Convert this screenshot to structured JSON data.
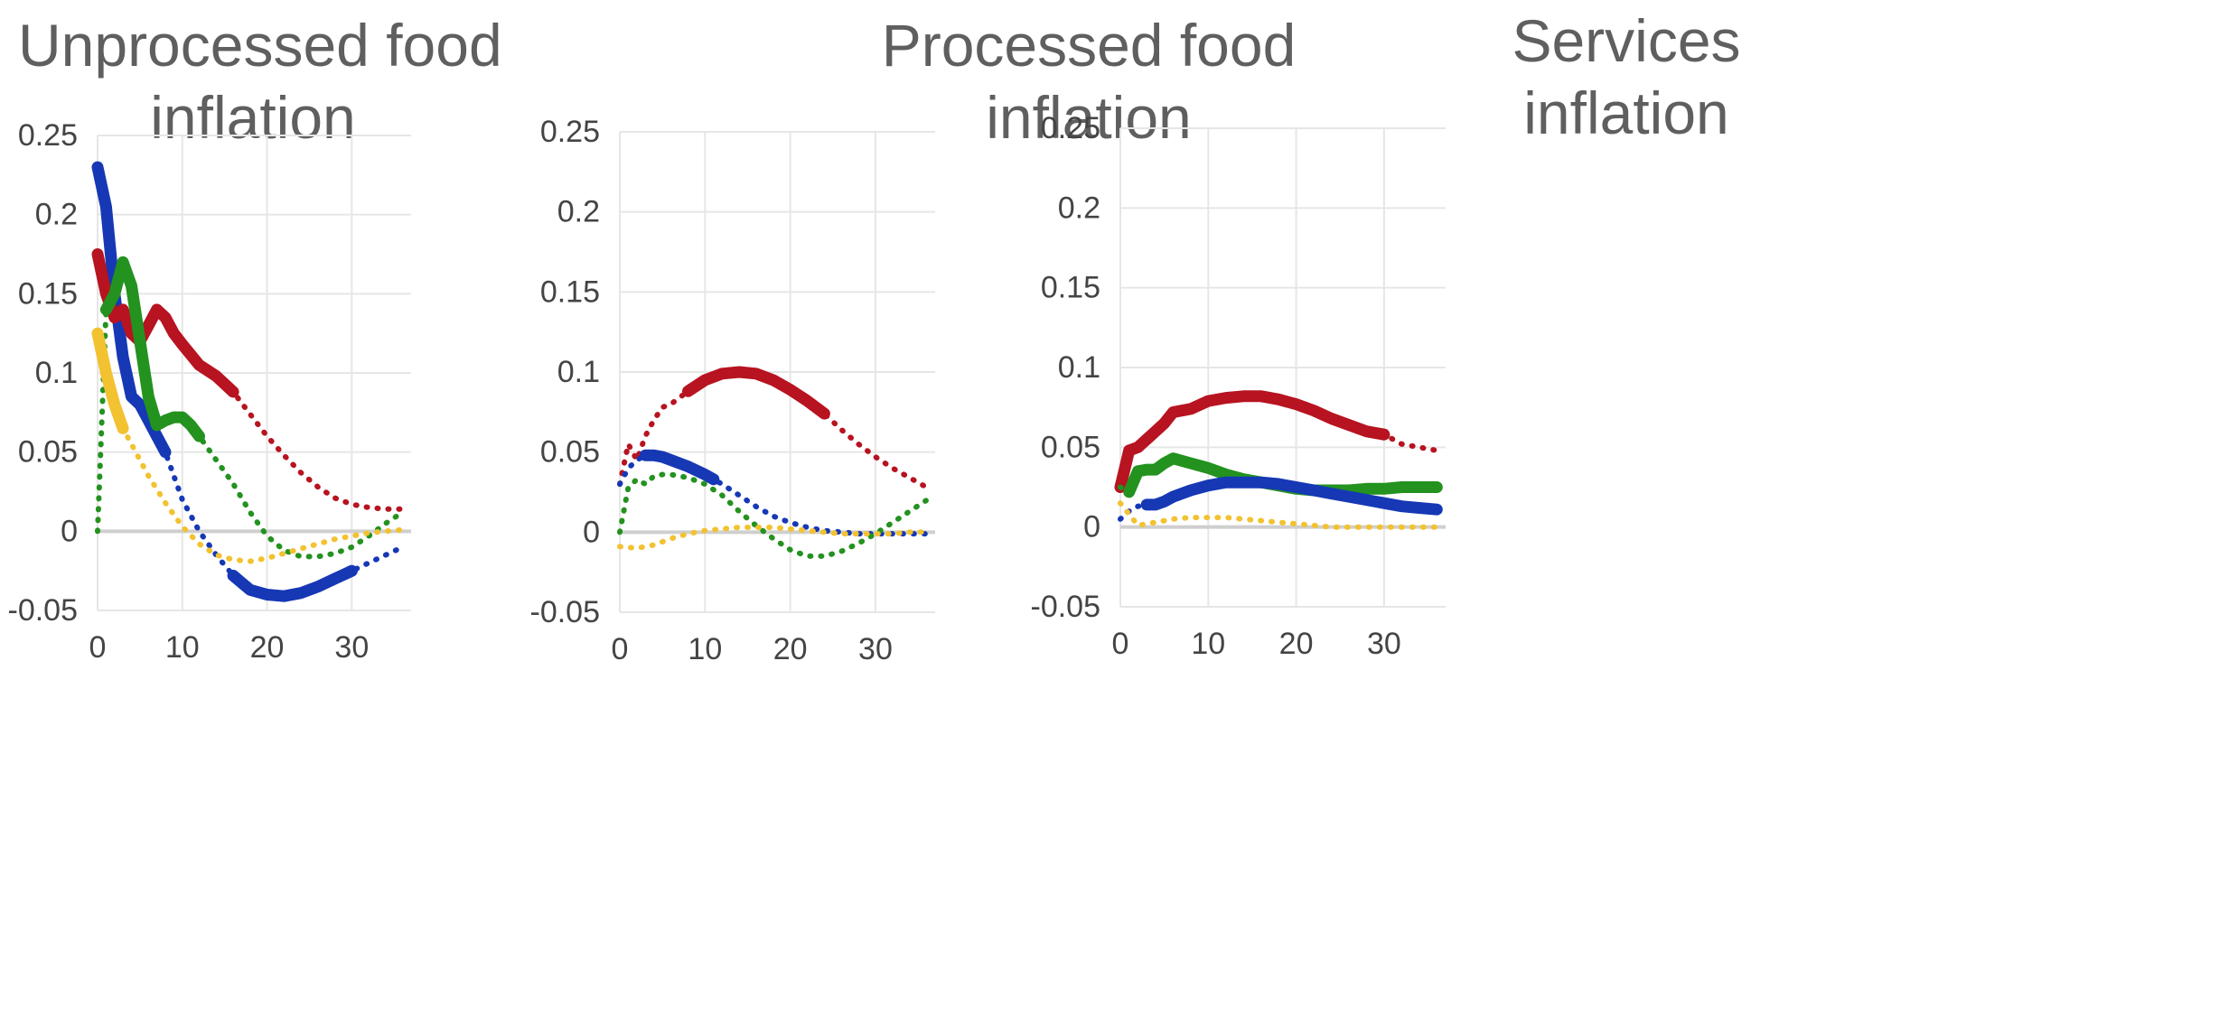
{
  "colors": {
    "blue": "#1638b5",
    "red": "#b71320",
    "green": "#23921f",
    "yellow": "#f2c230",
    "zero_line": "#cfcfcf",
    "grid": "#e6e6e6"
  },
  "chart_data": [
    {
      "type": "line",
      "title_lines": [
        "Unprocessed food",
        "inflation"
      ],
      "xlabel": "",
      "ylabel": "",
      "xlim": [
        0,
        37
      ],
      "ylim": [
        -0.05,
        0.25
      ],
      "x_ticks": [
        0,
        10,
        20,
        30
      ],
      "y_ticks": [
        -0.05,
        0,
        0.05,
        0.1,
        0.15,
        0.2,
        0.25
      ],
      "x_tick_labels": [
        "0",
        "10",
        "20",
        "30"
      ],
      "y_tick_labels": [
        "-0.05",
        "0",
        "0.05",
        "0.1",
        "0.15",
        "0.2",
        "0.25"
      ],
      "grid": true,
      "series": [
        {
          "color": "blue",
          "x": [
            0,
            1,
            2,
            3,
            4,
            5,
            6,
            7,
            8,
            9,
            10,
            12,
            14,
            16,
            18,
            20,
            22,
            24,
            26,
            28,
            30,
            32,
            34,
            36
          ],
          "y": [
            0.23,
            0.205,
            0.15,
            0.11,
            0.085,
            0.08,
            0.07,
            0.06,
            0.05,
            0.035,
            0.02,
            0.0,
            -0.015,
            -0.028,
            -0.037,
            -0.04,
            -0.041,
            -0.039,
            -0.035,
            -0.03,
            -0.025,
            -0.02,
            -0.015,
            -0.01
          ],
          "solid_ranges": [
            [
              0,
              8
            ],
            [
              16,
              30
            ]
          ]
        },
        {
          "color": "red",
          "x": [
            0,
            1,
            2,
            3,
            4,
            5,
            6,
            7,
            8,
            9,
            10,
            12,
            14,
            16,
            18,
            20,
            22,
            24,
            26,
            28,
            30,
            32,
            34,
            36
          ],
          "y": [
            0.175,
            0.15,
            0.135,
            0.14,
            0.125,
            0.12,
            0.13,
            0.14,
            0.135,
            0.125,
            0.118,
            0.105,
            0.098,
            0.088,
            0.074,
            0.06,
            0.048,
            0.037,
            0.028,
            0.021,
            0.017,
            0.015,
            0.014,
            0.014
          ],
          "solid_ranges": [
            [
              0,
              16
            ]
          ]
        },
        {
          "color": "green",
          "x": [
            0,
            1,
            2,
            3,
            4,
            5,
            6,
            7,
            8,
            9,
            10,
            11,
            12,
            14,
            16,
            18,
            20,
            22,
            24,
            26,
            28,
            30,
            32,
            34,
            36
          ],
          "y": [
            0.0,
            0.14,
            0.15,
            0.17,
            0.155,
            0.12,
            0.085,
            0.067,
            0.07,
            0.072,
            0.072,
            0.067,
            0.06,
            0.045,
            0.03,
            0.012,
            -0.003,
            -0.012,
            -0.016,
            -0.016,
            -0.014,
            -0.01,
            -0.003,
            0.005,
            0.012
          ],
          "solid_ranges": [
            [
              1,
              12
            ]
          ]
        },
        {
          "color": "yellow",
          "x": [
            0,
            1,
            2,
            3,
            4,
            5,
            6,
            8,
            10,
            12,
            14,
            16,
            18,
            20,
            22,
            24,
            26,
            28,
            30,
            32,
            34,
            36
          ],
          "y": [
            0.125,
            0.1,
            0.08,
            0.065,
            0.055,
            0.045,
            0.035,
            0.018,
            0.003,
            -0.008,
            -0.015,
            -0.018,
            -0.019,
            -0.017,
            -0.014,
            -0.011,
            -0.008,
            -0.005,
            -0.003,
            -0.001,
            0.0,
            0.001
          ],
          "solid_ranges": [
            [
              0,
              3
            ]
          ]
        }
      ]
    },
    {
      "type": "line",
      "title_lines": [
        "Processed food",
        "inflation"
      ],
      "xlabel": "",
      "ylabel": "",
      "xlim": [
        0,
        37
      ],
      "ylim": [
        -0.05,
        0.25
      ],
      "x_ticks": [
        0,
        10,
        20,
        30
      ],
      "y_ticks": [
        -0.05,
        0,
        0.05,
        0.1,
        0.15,
        0.2,
        0.25
      ],
      "x_tick_labels": [
        "0",
        "10",
        "20",
        "30"
      ],
      "y_tick_labels": [
        "-0.05",
        "0",
        "0.05",
        "0.1",
        "0.15",
        "0.2",
        "0.25"
      ],
      "grid": true,
      "series": [
        {
          "color": "red",
          "x": [
            0,
            1,
            2,
            3,
            4,
            5,
            6,
            8,
            10,
            12,
            14,
            16,
            18,
            20,
            22,
            24,
            26,
            28,
            30,
            32,
            34,
            36
          ],
          "y": [
            0.03,
            0.055,
            0.045,
            0.06,
            0.07,
            0.078,
            0.08,
            0.088,
            0.095,
            0.099,
            0.1,
            0.099,
            0.095,
            0.089,
            0.082,
            0.074,
            0.064,
            0.055,
            0.047,
            0.04,
            0.034,
            0.028
          ],
          "solid_ranges": [
            [
              8,
              24
            ]
          ]
        },
        {
          "color": "blue",
          "x": [
            0,
            1,
            2,
            3,
            4,
            5,
            6,
            8,
            10,
            11,
            12,
            14,
            16,
            18,
            20,
            22,
            24,
            26,
            28,
            30,
            32,
            34,
            36
          ],
          "y": [
            0.03,
            0.04,
            0.045,
            0.048,
            0.048,
            0.047,
            0.045,
            0.041,
            0.036,
            0.033,
            0.03,
            0.023,
            0.016,
            0.01,
            0.006,
            0.003,
            0.001,
            0.0,
            -0.001,
            -0.001,
            -0.001,
            -0.001,
            -0.001
          ],
          "solid_ranges": [
            [
              3,
              11
            ]
          ]
        },
        {
          "color": "green",
          "x": [
            0,
            1,
            2,
            3,
            4,
            5,
            6,
            8,
            10,
            12,
            14,
            16,
            18,
            20,
            22,
            24,
            26,
            28,
            30,
            32,
            34,
            36
          ],
          "y": [
            0.0,
            0.028,
            0.033,
            0.03,
            0.035,
            0.036,
            0.036,
            0.034,
            0.03,
            0.023,
            0.013,
            0.004,
            -0.004,
            -0.011,
            -0.015,
            -0.015,
            -0.012,
            -0.007,
            -0.001,
            0.006,
            0.013,
            0.02
          ],
          "solid_ranges": []
        },
        {
          "color": "yellow",
          "x": [
            0,
            2,
            4,
            6,
            8,
            10,
            12,
            14,
            16,
            18,
            20,
            22,
            24,
            26,
            28,
            30,
            32,
            34,
            36
          ],
          "y": [
            -0.009,
            -0.01,
            -0.008,
            -0.004,
            -0.001,
            0.001,
            0.002,
            0.003,
            0.003,
            0.003,
            0.002,
            0.001,
            0.0,
            -0.001,
            -0.001,
            -0.001,
            -0.001,
            0.0,
            0.0
          ],
          "solid_ranges": []
        }
      ]
    },
    {
      "type": "line",
      "title_lines": [
        "Services",
        "inflation"
      ],
      "xlabel": "",
      "ylabel": "",
      "xlim": [
        0,
        37
      ],
      "ylim": [
        -0.05,
        0.25
      ],
      "x_ticks": [
        0,
        10,
        20,
        30
      ],
      "y_ticks": [
        -0.05,
        0,
        0.05,
        0.1,
        0.15,
        0.2,
        0.25
      ],
      "x_tick_labels": [
        "0",
        "10",
        "20",
        "30"
      ],
      "y_tick_labels": [
        "-0.05",
        "0",
        "0.05",
        "0.1",
        "0.15",
        "0.2",
        "0.25"
      ],
      "grid": true,
      "series": [
        {
          "color": "red",
          "x": [
            0,
            1,
            2,
            3,
            4,
            5,
            6,
            7,
            8,
            10,
            12,
            14,
            16,
            18,
            20,
            22,
            24,
            26,
            28,
            30,
            32,
            34,
            36
          ],
          "y": [
            0.025,
            0.048,
            0.05,
            0.055,
            0.06,
            0.065,
            0.072,
            0.073,
            0.074,
            0.079,
            0.081,
            0.082,
            0.082,
            0.08,
            0.077,
            0.073,
            0.068,
            0.064,
            0.06,
            0.058,
            0.052,
            0.05,
            0.048
          ],
          "solid_ranges": [
            [
              0,
              30
            ]
          ]
        },
        {
          "color": "green",
          "x": [
            0,
            1,
            2,
            3,
            4,
            5,
            6,
            8,
            10,
            12,
            14,
            16,
            18,
            20,
            22,
            24,
            26,
            28,
            30,
            32,
            34,
            36
          ],
          "y": [
            0.025,
            0.022,
            0.035,
            0.036,
            0.036,
            0.04,
            0.043,
            0.04,
            0.037,
            0.033,
            0.03,
            0.028,
            0.026,
            0.024,
            0.023,
            0.023,
            0.023,
            0.024,
            0.024,
            0.025,
            0.025,
            0.025
          ],
          "solid_ranges": [
            [
              1,
              36
            ]
          ]
        },
        {
          "color": "blue",
          "x": [
            0,
            1,
            2,
            3,
            4,
            5,
            6,
            8,
            10,
            12,
            14,
            16,
            18,
            20,
            22,
            24,
            26,
            28,
            30,
            32,
            34,
            36
          ],
          "y": [
            0.005,
            0.01,
            0.013,
            0.014,
            0.014,
            0.016,
            0.019,
            0.023,
            0.026,
            0.028,
            0.028,
            0.028,
            0.027,
            0.025,
            0.023,
            0.021,
            0.019,
            0.017,
            0.015,
            0.013,
            0.012,
            0.011
          ],
          "solid_ranges": [
            [
              3,
              36
            ]
          ]
        },
        {
          "color": "yellow",
          "x": [
            0,
            2,
            4,
            6,
            8,
            10,
            12,
            14,
            16,
            18,
            20,
            22,
            24,
            26,
            28,
            30,
            32,
            34,
            36
          ],
          "y": [
            0.015,
            0.001,
            0.003,
            0.005,
            0.006,
            0.006,
            0.006,
            0.005,
            0.004,
            0.003,
            0.002,
            0.001,
            0.0,
            0.0,
            0.0,
            0.0,
            0.0,
            0.0,
            0.0
          ],
          "solid_ranges": []
        }
      ]
    }
  ]
}
